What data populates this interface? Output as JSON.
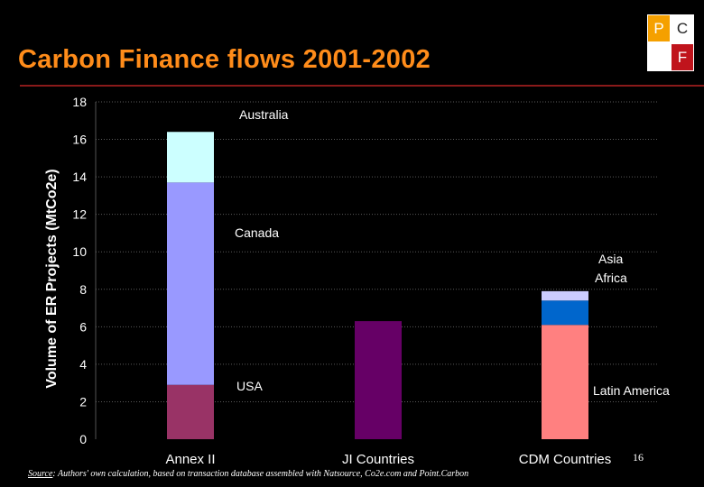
{
  "header": {
    "title": "Carbon Finance flows 2001-2002"
  },
  "logo": {
    "letters": [
      "P",
      "C",
      "",
      "F"
    ]
  },
  "footer": {
    "source_label": "Source",
    "source_text": ": Authors' own calculation, based on transaction database assembled with Natsource, Co2e.com and Point.Carbon",
    "page_number": "16"
  },
  "colors": {
    "title": "#ff8c1a",
    "rule": "#8a1a1a",
    "background": "#000000"
  },
  "chart_data": {
    "type": "bar",
    "stacked": true,
    "title": "",
    "ylabel": "Volume of ER Projects (MtCo2e)",
    "xlabel": "",
    "ylim": [
      0,
      18
    ],
    "yticks": [
      0,
      2,
      4,
      6,
      8,
      10,
      12,
      14,
      16,
      18
    ],
    "grid": true,
    "categories": [
      "Annex II",
      "JI Countries",
      "CDM Countries"
    ],
    "series": [
      {
        "name": "USA",
        "color": "#993366",
        "values": [
          2.9,
          null,
          null
        ]
      },
      {
        "name": "Canada",
        "color": "#9999ff",
        "values": [
          10.8,
          null,
          null
        ]
      },
      {
        "name": "Australia",
        "color": "#ccffff",
        "values": [
          2.7,
          null,
          null
        ]
      },
      {
        "name": "",
        "color": "#660066",
        "values": [
          null,
          6.3,
          null
        ]
      },
      {
        "name": "Latin America",
        "color": "#ff8080",
        "values": [
          null,
          null,
          6.1
        ]
      },
      {
        "name": "Africa",
        "color": "#0066cc",
        "values": [
          null,
          null,
          1.3
        ]
      },
      {
        "name": "Asia",
        "color": "#ccccff",
        "values": [
          null,
          null,
          0.5
        ]
      }
    ],
    "annotations": [
      "Australia",
      "Canada",
      "Asia",
      "Africa",
      "USA",
      "Latin America"
    ]
  }
}
